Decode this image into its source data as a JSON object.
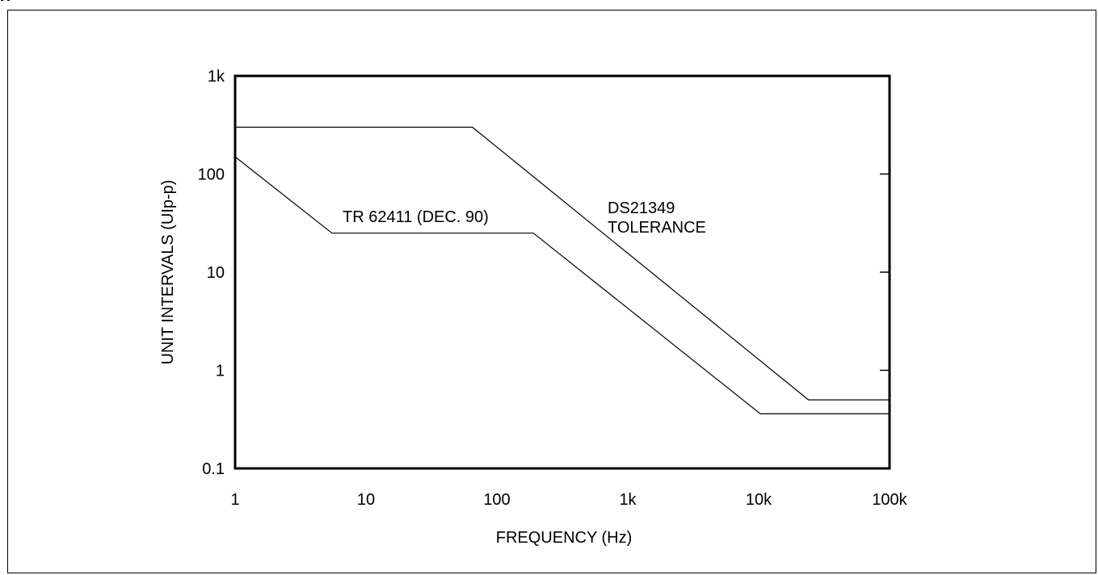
{
  "figure": {
    "header_fragment": "g"
  },
  "chart_data": {
    "type": "line",
    "xscale": "log",
    "yscale": "log",
    "xlim": [
      1,
      100000
    ],
    "ylim": [
      0.1,
      1000
    ],
    "xlabel": "FREQUENCY (Hz)",
    "ylabel": "UNIT INTERVALS (UIp-p)",
    "x_tick_values": [
      1,
      10,
      100,
      1000,
      10000,
      100000
    ],
    "x_tick_labels": [
      "1",
      "10",
      "100",
      "1k",
      "10k",
      "100k"
    ],
    "y_tick_values": [
      0.1,
      1,
      10,
      100,
      1000
    ],
    "y_tick_labels": [
      "0.1",
      "1",
      "10",
      "100",
      "1k"
    ],
    "grid": false,
    "series": [
      {
        "name": "DS21349 TOLERANCE",
        "color": "#000000",
        "points": [
          [
            1,
            300
          ],
          [
            65,
            300
          ],
          [
            24000,
            0.5
          ],
          [
            100000,
            0.5
          ]
        ]
      },
      {
        "name": "TR 62411 (DEC. 90)",
        "color": "#000000",
        "points": [
          [
            1,
            150
          ],
          [
            5.5,
            25
          ],
          [
            190,
            25
          ],
          [
            10300,
            0.36
          ],
          [
            100000,
            0.36
          ]
        ]
      }
    ],
    "annotations": [
      {
        "series": 0,
        "lines": [
          "DS21349",
          "TOLERANCE"
        ]
      },
      {
        "series": 1,
        "lines": [
          "TR 62411 (DEC. 90)"
        ]
      }
    ]
  }
}
